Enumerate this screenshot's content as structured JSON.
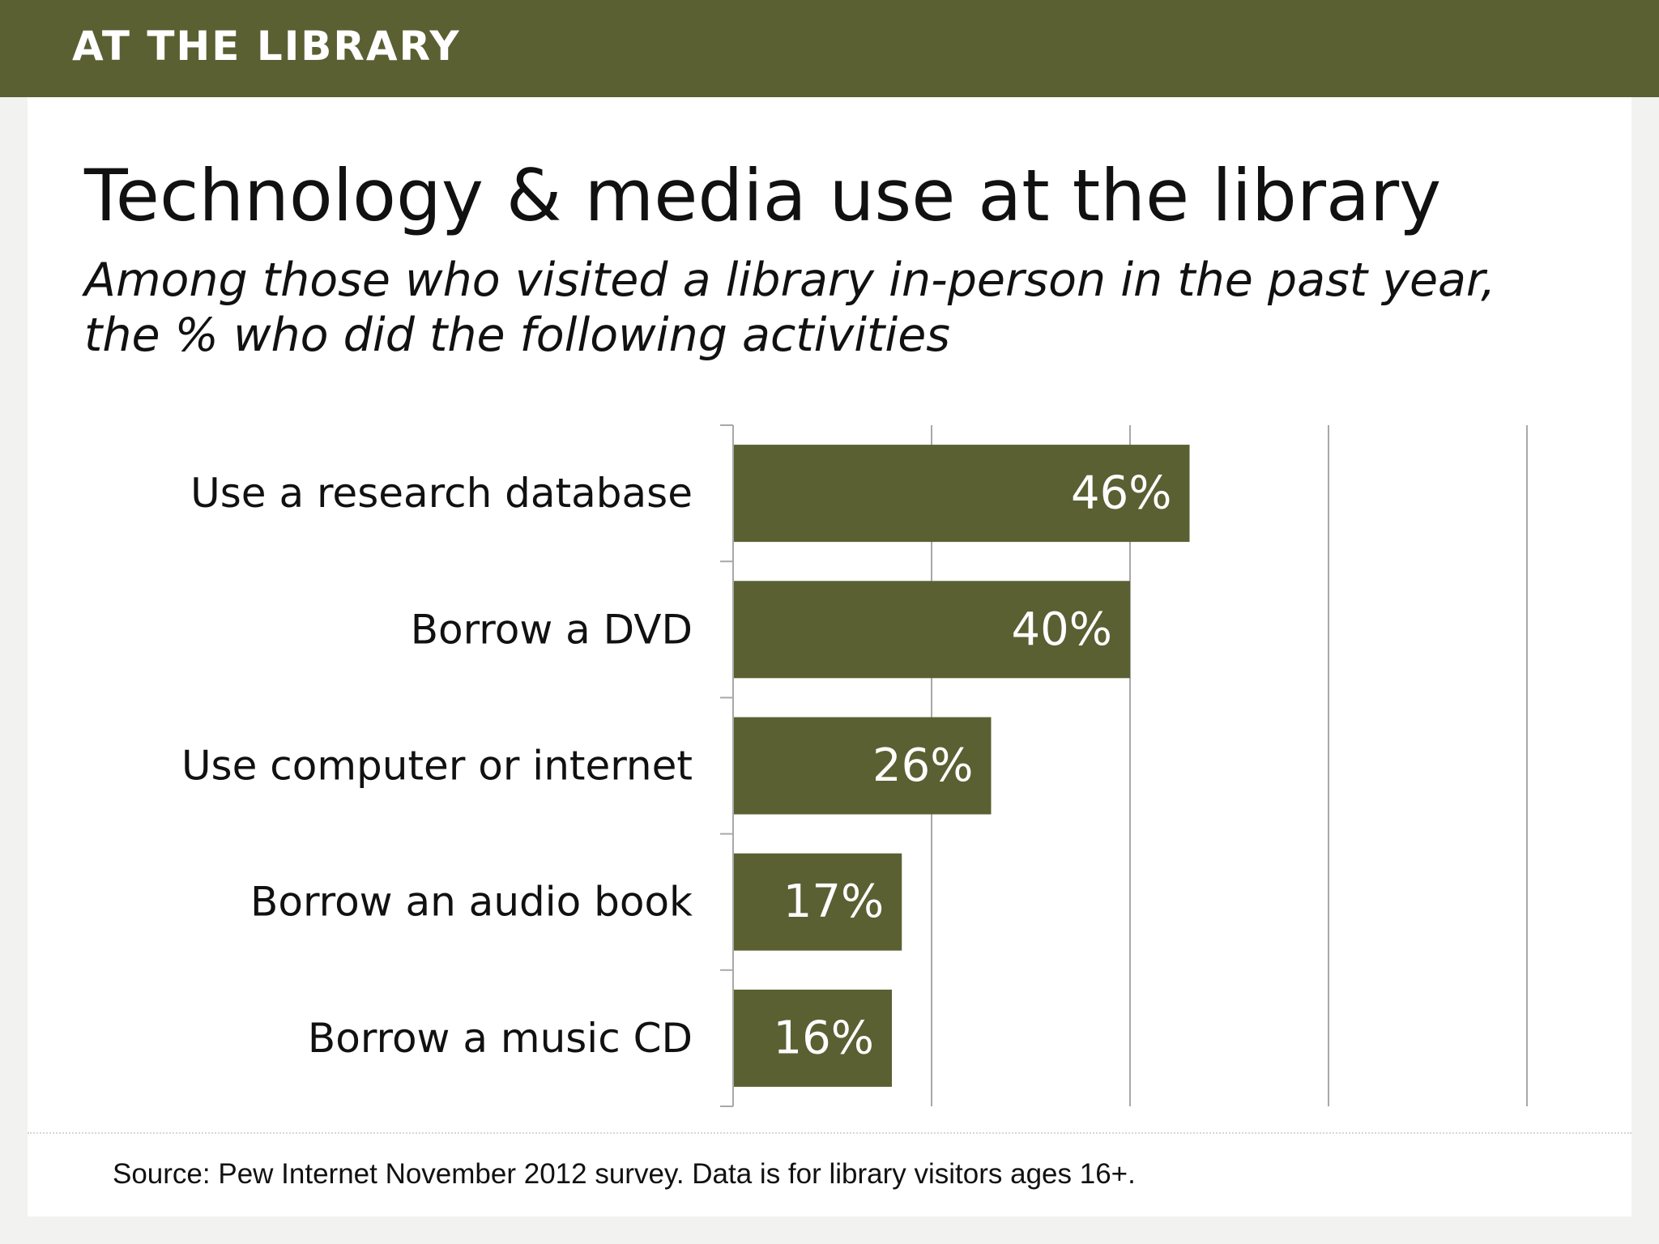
{
  "header": {
    "label": "AT THE LIBRARY"
  },
  "colors": {
    "accent": "#5a6032",
    "gridline": "#a8a8a8",
    "bar_label": "#ffffff",
    "text": "#111111"
  },
  "footer": {
    "source": "Source: Pew Internet November 2012 survey. Data is for library visitors ages 16+."
  },
  "chart_data": {
    "type": "bar",
    "orientation": "horizontal",
    "title": "Technology & media use at the library",
    "subtitle_lines": [
      "Among those who visited a library in-person in the past year,",
      "the % who did the following activities"
    ],
    "categories": [
      "Use a research database",
      "Borrow a DVD",
      "Use computer or internet",
      "Borrow an audio book",
      "Borrow a music CD"
    ],
    "values": [
      46,
      40,
      26,
      17,
      16
    ],
    "value_labels": [
      "46%",
      "40%",
      "26%",
      "17%",
      "16%"
    ],
    "xlim": [
      0,
      80
    ],
    "grid_step": 20,
    "grid": true,
    "legend": "none"
  }
}
